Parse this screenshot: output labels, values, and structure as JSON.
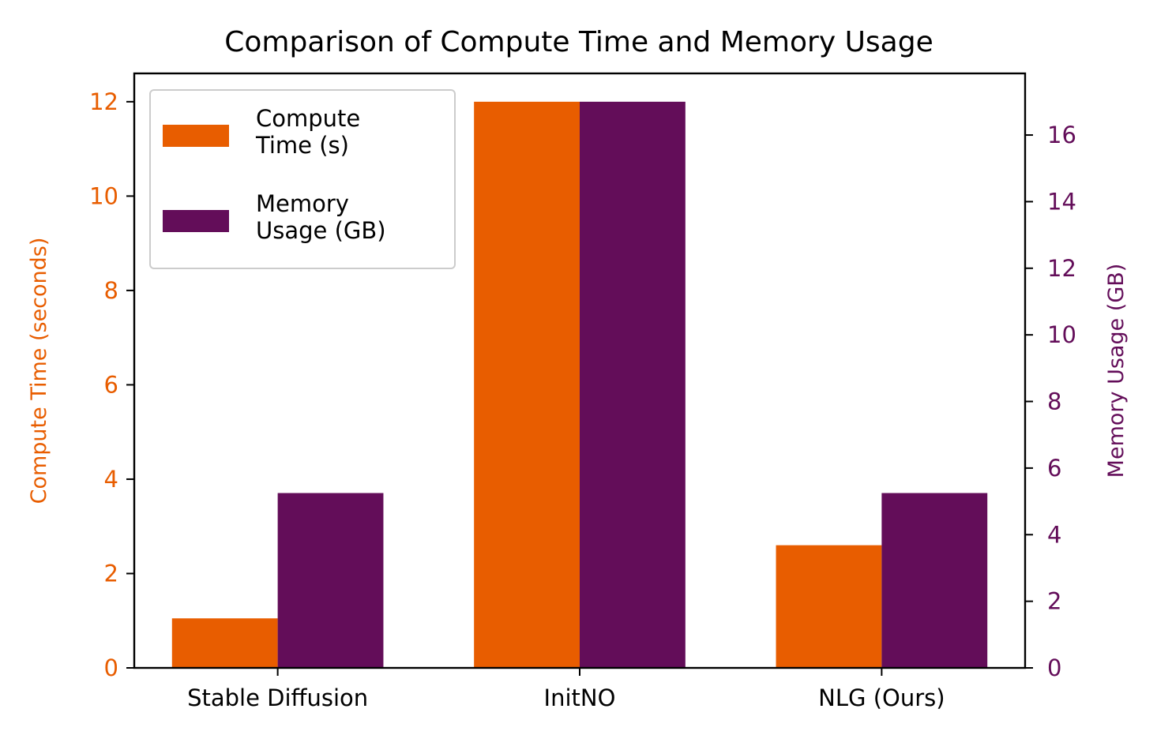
{
  "chart_data": {
    "type": "bar",
    "title": "Comparison of Compute Time and Memory Usage",
    "categories": [
      "Stable Diffusion",
      "InitNO",
      "NLG (Ours)"
    ],
    "series": [
      {
        "name": "Compute\nTime (s)",
        "axis": "left",
        "values": [
          1.05,
          12.0,
          2.6
        ],
        "color": "#E85D00"
      },
      {
        "name": "Memory\nUsage (GB)",
        "axis": "right",
        "values": [
          5.25,
          17.0,
          5.25
        ],
        "color": "#630D59"
      }
    ],
    "y_left": {
      "label": "Compute Time (seconds)",
      "ylim": [
        0,
        12.6
      ],
      "ticks": [
        0,
        2,
        4,
        6,
        8,
        10,
        12
      ],
      "color": "#E85D00"
    },
    "y_right": {
      "label": "Memory Usage (GB)",
      "ylim": [
        0,
        17.85
      ],
      "ticks": [
        0,
        2,
        4,
        6,
        8,
        10,
        12,
        14,
        16
      ],
      "color": "#630D59"
    },
    "legend": "top-left",
    "grid": false
  }
}
